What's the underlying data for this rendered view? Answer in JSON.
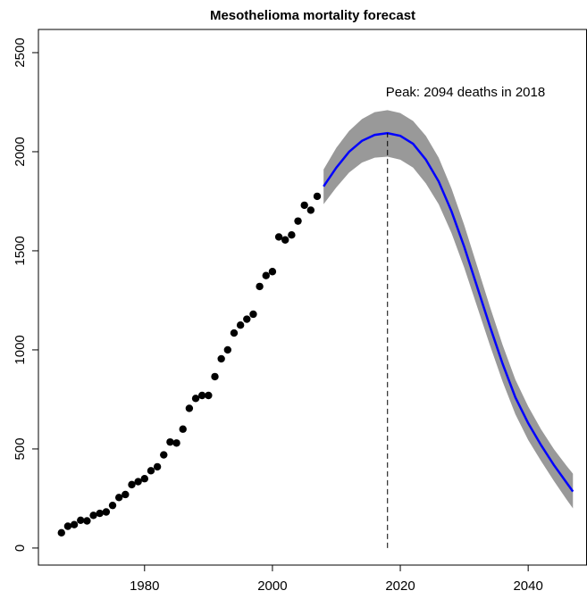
{
  "chart_data": {
    "type": "line",
    "title": "Mesothelioma mortality forecast",
    "xlim": [
      1963.4,
      2049.2
    ],
    "xticks": [
      1980,
      2000,
      2020,
      2040
    ],
    "ylim": [
      -86,
      2617
    ],
    "yticks": [
      0,
      500,
      1000,
      1500,
      2000,
      2500
    ],
    "series": [
      {
        "style": "points",
        "color": "#000000",
        "x": [
          1967,
          1968,
          1969,
          1970,
          1971,
          1972,
          1973,
          1974,
          1975,
          1976,
          1977,
          1978,
          1979,
          1980,
          1981,
          1982,
          1983,
          1984,
          1985,
          1986,
          1987,
          1988,
          1989,
          1990,
          1991,
          1992,
          1993,
          1994,
          1995,
          1996,
          1997,
          1998,
          1999,
          2000,
          2001,
          2002,
          2003,
          2004,
          2005,
          2006,
          2007
        ],
        "values": [
          77,
          110,
          118,
          140,
          137,
          165,
          175,
          182,
          215,
          255,
          270,
          320,
          335,
          350,
          390,
          410,
          470,
          535,
          530,
          600,
          705,
          755,
          770,
          770,
          865,
          955,
          1000,
          1085,
          1125,
          1155,
          1180,
          1320,
          1375,
          1395,
          1570,
          1555,
          1580,
          1650,
          1730,
          1705,
          1775
        ]
      },
      {
        "style": "line",
        "color": "#0000ff",
        "band_color": "#999999",
        "x": [
          2008,
          2010,
          2012,
          2014,
          2016,
          2018,
          2020,
          2022,
          2024,
          2026,
          2028,
          2030,
          2032,
          2034,
          2036,
          2038,
          2040,
          2042,
          2044,
          2046,
          2047
        ],
        "values": [
          1825,
          1920,
          2000,
          2055,
          2085,
          2094,
          2080,
          2040,
          1960,
          1850,
          1700,
          1520,
          1320,
          1120,
          930,
          760,
          630,
          520,
          420,
          330,
          285
        ],
        "lower": [
          1735,
          1820,
          1895,
          1945,
          1970,
          1975,
          1960,
          1920,
          1840,
          1735,
          1590,
          1415,
          1220,
          1025,
          840,
          675,
          545,
          440,
          340,
          245,
          200
        ],
        "upper": [
          1910,
          2020,
          2105,
          2165,
          2200,
          2210,
          2195,
          2155,
          2080,
          1970,
          1815,
          1630,
          1425,
          1220,
          1025,
          850,
          715,
          600,
          500,
          415,
          375
        ]
      }
    ],
    "annotation": {
      "text": "Peak: 2094 deaths in 2018",
      "x": 2018,
      "y": 2094
    }
  }
}
